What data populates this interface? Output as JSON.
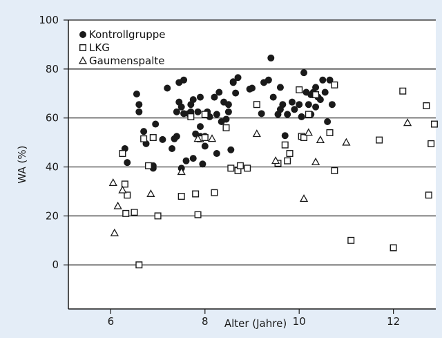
{
  "chart_data": {
    "type": "scatter",
    "xlabel": "Alter (Jahre)",
    "ylabel": "WA (%)",
    "xlim": [
      5.1,
      12.9
    ],
    "ylim": [
      -18,
      100
    ],
    "xticks": [
      6,
      8,
      10,
      12
    ],
    "yticks": [
      0,
      20,
      40,
      60,
      80,
      100
    ],
    "grid": "horizontal",
    "legend_position": "top-left",
    "colors": {
      "background": "#e4edf7",
      "plot": "#ffffff",
      "marker": "#1a1a1a"
    },
    "series": [
      {
        "name": "Kontrollgruppe",
        "marker": "filled-circle",
        "points": [
          [
            6.3,
            47.5
          ],
          [
            6.35,
            41.8
          ],
          [
            6.55,
            69.8
          ],
          [
            6.6,
            65.5
          ],
          [
            6.6,
            62.5
          ],
          [
            6.7,
            54.5
          ],
          [
            6.75,
            49.5
          ],
          [
            6.9,
            39.5
          ],
          [
            6.9,
            40.5
          ],
          [
            6.95,
            57.5
          ],
          [
            7.1,
            51.2
          ],
          [
            7.2,
            72.2
          ],
          [
            7.3,
            47.5
          ],
          [
            7.35,
            51.5
          ],
          [
            7.4,
            52.5
          ],
          [
            7.4,
            62.5
          ],
          [
            7.45,
            66.5
          ],
          [
            7.45,
            74.5
          ],
          [
            7.5,
            39.5
          ],
          [
            7.5,
            64.5
          ],
          [
            7.55,
            61.8
          ],
          [
            7.55,
            75.5
          ],
          [
            7.6,
            42.5
          ],
          [
            7.65,
            61.8
          ],
          [
            7.7,
            62.5
          ],
          [
            7.7,
            65.5
          ],
          [
            7.75,
            43.5
          ],
          [
            7.75,
            67.5
          ],
          [
            7.8,
            53.5
          ],
          [
            7.85,
            62.5
          ],
          [
            7.9,
            52.5
          ],
          [
            7.9,
            56.5
          ],
          [
            7.9,
            68.5
          ],
          [
            7.95,
            41.2
          ],
          [
            8.0,
            48.5
          ],
          [
            8.0,
            52.5
          ],
          [
            8.05,
            62.5
          ],
          [
            8.1,
            60.5
          ],
          [
            8.2,
            68.5
          ],
          [
            8.25,
            45.5
          ],
          [
            8.25,
            61.5
          ],
          [
            8.3,
            70.5
          ],
          [
            8.35,
            58.5
          ],
          [
            8.4,
            66.5
          ],
          [
            8.45,
            59.5
          ],
          [
            8.5,
            62.5
          ],
          [
            8.5,
            65.5
          ],
          [
            8.55,
            47.0
          ],
          [
            8.6,
            74.5
          ],
          [
            8.65,
            70.2
          ],
          [
            8.7,
            76.5
          ],
          [
            8.95,
            71.8
          ],
          [
            9.2,
            61.8
          ],
          [
            9.25,
            74.5
          ],
          [
            9.35,
            75.5
          ],
          [
            9.4,
            84.5
          ],
          [
            9.45,
            68.5
          ],
          [
            9.55,
            61.5
          ],
          [
            9.6,
            63.5
          ],
          [
            9.6,
            72.5
          ],
          [
            9.65,
            65.5
          ],
          [
            9.7,
            52.8
          ],
          [
            9.75,
            61.5
          ],
          [
            9.85,
            66.5
          ],
          [
            9.9,
            63.5
          ],
          [
            10.0,
            65.5
          ],
          [
            10.05,
            60.5
          ],
          [
            10.1,
            78.5
          ],
          [
            10.15,
            70.5
          ],
          [
            10.2,
            65.5
          ],
          [
            10.25,
            61.5
          ],
          [
            10.3,
            70.5
          ],
          [
            10.35,
            72.5
          ],
          [
            10.35,
            64.5
          ],
          [
            10.4,
            68.5
          ],
          [
            10.45,
            67.5
          ],
          [
            10.5,
            75.5
          ],
          [
            10.55,
            70.5
          ],
          [
            10.6,
            58.5
          ],
          [
            10.65,
            75.5
          ],
          [
            10.7,
            65.5
          ],
          [
            8.6,
            74.8
          ],
          [
            9.0,
            72.2
          ],
          [
            10.25,
            69.5
          ]
        ]
      },
      {
        "name": "LKG",
        "marker": "open-square",
        "points": [
          [
            6.25,
            45.5
          ],
          [
            6.3,
            33.0
          ],
          [
            6.32,
            21.0
          ],
          [
            6.35,
            28.5
          ],
          [
            6.5,
            21.5
          ],
          [
            6.6,
            0.0
          ],
          [
            6.7,
            51.5
          ],
          [
            6.8,
            40.5
          ],
          [
            6.9,
            52.0
          ],
          [
            7.0,
            20.0
          ],
          [
            7.5,
            28.0
          ],
          [
            7.7,
            60.5
          ],
          [
            7.8,
            29.0
          ],
          [
            7.85,
            20.5
          ],
          [
            7.9,
            51.5
          ],
          [
            8.0,
            61.5
          ],
          [
            8.0,
            52.0
          ],
          [
            8.2,
            29.5
          ],
          [
            8.45,
            56.0
          ],
          [
            8.55,
            39.5
          ],
          [
            8.7,
            38.5
          ],
          [
            8.75,
            40.5
          ],
          [
            8.9,
            39.5
          ],
          [
            9.1,
            65.5
          ],
          [
            9.55,
            41.5
          ],
          [
            9.7,
            49.0
          ],
          [
            9.75,
            42.5
          ],
          [
            9.8,
            45.5
          ],
          [
            10.0,
            71.5
          ],
          [
            10.05,
            52.5
          ],
          [
            10.1,
            52.0
          ],
          [
            10.2,
            61.5
          ],
          [
            10.35,
            69.5
          ],
          [
            10.65,
            54.0
          ],
          [
            10.75,
            73.5
          ],
          [
            10.75,
            38.5
          ],
          [
            11.1,
            10.0
          ],
          [
            11.7,
            51.0
          ],
          [
            12.0,
            7.0
          ],
          [
            12.2,
            71.0
          ],
          [
            12.7,
            65.0
          ],
          [
            12.75,
            28.5
          ],
          [
            12.8,
            49.5
          ],
          [
            12.87,
            57.5
          ]
        ]
      },
      {
        "name": "Gaumenspalte",
        "marker": "open-triangle",
        "points": [
          [
            6.05,
            33.5
          ],
          [
            6.08,
            13.0
          ],
          [
            6.15,
            24.0
          ],
          [
            6.25,
            30.5
          ],
          [
            6.85,
            29.0
          ],
          [
            7.5,
            38.0
          ],
          [
            7.85,
            51.5
          ],
          [
            8.15,
            51.5
          ],
          [
            9.1,
            53.5
          ],
          [
            9.5,
            42.5
          ],
          [
            10.1,
            27.0
          ],
          [
            10.2,
            54.0
          ],
          [
            10.35,
            42.0
          ],
          [
            10.45,
            51.0
          ],
          [
            11.0,
            50.0
          ],
          [
            12.3,
            58.0
          ]
        ]
      }
    ]
  }
}
